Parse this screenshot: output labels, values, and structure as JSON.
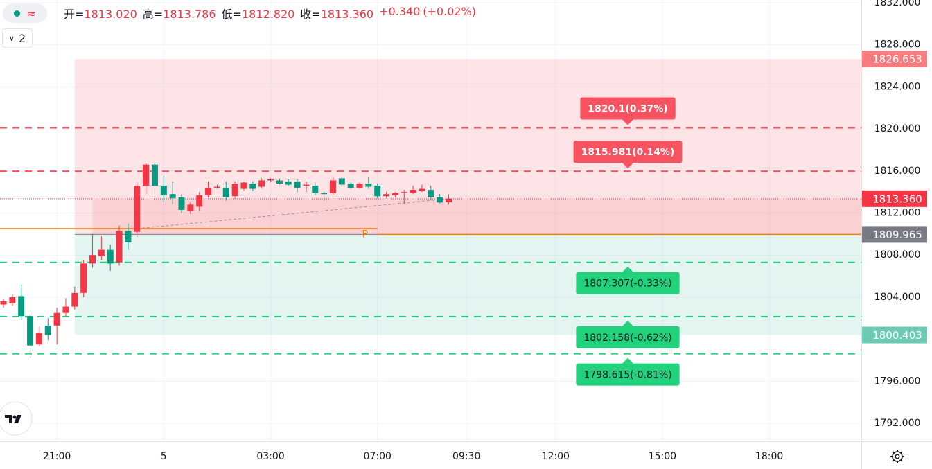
{
  "legend_bar": {
    "items": [
      {
        "label": "开=",
        "value": "1813.020"
      },
      {
        "label": "高=",
        "value": "1813.786"
      },
      {
        "label": "低=",
        "value": "1812.820"
      },
      {
        "label": "收=",
        "value": "1813.360"
      }
    ],
    "change": "+0.340",
    "change_percent": "(+0.02%)",
    "indicator_count": "2"
  },
  "chart_data": {
    "type": "candlestick",
    "up_color": "#f23645",
    "down_color": "#089981",
    "open": [
      1803.3,
      1803.4,
      1804.1,
      1802.2,
      1799.5,
      1801.3,
      1801.3,
      1802.5,
      1803.1,
      1804.4,
      1807.2,
      1807.9,
      1808.5,
      1807.3,
      1810.3,
      1810.2,
      1814.6,
      1816.6,
      1814.6,
      1813.8,
      1813.5,
      1812.2,
      1812.6,
      1813.7,
      1814.4,
      1814.4,
      1813.6,
      1814.3,
      1814.8,
      1814.5,
      1815.1,
      1815.1,
      1815.0,
      1815.0,
      1814.6,
      1814.6,
      1813.9,
      1813.9,
      1815.3,
      1814.8,
      1814.4,
      1814.8,
      1814.6,
      1813.6,
      1813.7,
      1813.9,
      1813.9,
      1814.1,
      1814.2,
      1813.5,
      1813.02
    ],
    "high": [
      1803.8,
      1804.3,
      1805.2,
      1802.4,
      1801.2,
      1802.0,
      1803.0,
      1803.9,
      1805.0,
      1807.5,
      1810.0,
      1809.8,
      1809.0,
      1810.8,
      1811.0,
      1814.9,
      1816.7,
      1816.7,
      1815.5,
      1815.0,
      1813.8,
      1813.0,
      1814.0,
      1815.0,
      1814.7,
      1815.0,
      1815.0,
      1815.0,
      1815.0,
      1815.3,
      1815.3,
      1815.3,
      1815.2,
      1815.2,
      1815.0,
      1814.9,
      1814.0,
      1815.4,
      1815.4,
      1814.9,
      1814.9,
      1815.4,
      1814.8,
      1814.0,
      1814.0,
      1814.2,
      1814.6,
      1814.7,
      1814.6,
      1813.8,
      1813.786
    ],
    "low": [
      1803.0,
      1803.2,
      1801.8,
      1798.2,
      1799.3,
      1799.9,
      1799.5,
      1802.2,
      1802.8,
      1804.0,
      1806.8,
      1807.5,
      1806.5,
      1807.0,
      1808.5,
      1809.7,
      1813.8,
      1813.5,
      1813.0,
      1812.8,
      1812.0,
      1811.9,
      1812.2,
      1813.5,
      1814.3,
      1813.2,
      1813.4,
      1814.1,
      1814.1,
      1814.3,
      1815.0,
      1814.7,
      1814.6,
      1814.0,
      1814.0,
      1813.7,
      1813.2,
      1813.7,
      1814.5,
      1814.3,
      1814.3,
      1814.3,
      1813.4,
      1813.4,
      1813.5,
      1812.9,
      1813.8,
      1814.0,
      1813.3,
      1812.9,
      1812.82
    ],
    "close": [
      1803.6,
      1804.0,
      1802.2,
      1799.4,
      1800.6,
      1800.4,
      1802.5,
      1803.1,
      1804.4,
      1807.2,
      1808.0,
      1808.5,
      1807.2,
      1810.3,
      1809.2,
      1814.6,
      1816.6,
      1814.6,
      1813.7,
      1813.4,
      1812.3,
      1812.8,
      1813.7,
      1814.4,
      1814.5,
      1813.5,
      1814.8,
      1814.9,
      1814.3,
      1815.1,
      1815.2,
      1814.8,
      1814.7,
      1814.4,
      1814.7,
      1813.9,
      1813.8,
      1815.1,
      1814.7,
      1814.4,
      1814.8,
      1814.5,
      1813.6,
      1813.8,
      1813.9,
      1814.0,
      1814.2,
      1814.3,
      1813.5,
      1813.0,
      1813.36
    ],
    "xlim": [
      -0.39,
      96.34
    ],
    "xticks": [
      {
        "value": 6,
        "label": "21:00"
      },
      {
        "value": 18,
        "label": "5"
      },
      {
        "value": 30,
        "label": "03:00"
      },
      {
        "value": 42,
        "label": "07:00"
      },
      {
        "value": 52,
        "label": "09:30"
      },
      {
        "value": 62,
        "label": "12:00"
      },
      {
        "value": 74,
        "label": "15:00"
      },
      {
        "value": 86,
        "label": "18:00"
      }
    ],
    "ylim": [
      1790.29,
      1832.26
    ],
    "yticks": [
      {
        "value": 1832,
        "label": "1832.000"
      },
      {
        "value": 1828,
        "label": "1828.000"
      },
      {
        "value": 1824,
        "label": "1824.000"
      },
      {
        "value": 1820,
        "label": "1820.000"
      },
      {
        "value": 1816,
        "label": "1816.000"
      },
      {
        "value": 1812,
        "label": "1812.000"
      },
      {
        "value": 1808,
        "label": "1808.000"
      },
      {
        "value": 1804,
        "label": "1804.000"
      },
      {
        "value": 1796,
        "label": "1796.000"
      },
      {
        "value": 1792,
        "label": "1792.000"
      }
    ],
    "grid": true,
    "levels": [
      {
        "value": 1820.1,
        "label": "1820.1(0.37%)",
        "color": "#f7525f"
      },
      {
        "value": 1815.981,
        "label": "1815.981(0.14%)",
        "color": "#f7525f"
      },
      {
        "value": 1807.307,
        "label": "1807.307(-0.33%)",
        "color": "#22d17b"
      },
      {
        "value": 1802.158,
        "label": "1802.158(-0.62%)",
        "color": "#22d17b"
      },
      {
        "value": 1798.615,
        "label": "1798.615(-0.81%)",
        "color": "#22d17b"
      }
    ],
    "position": {
      "target": {
        "value": 1826.653,
        "color": "#f77c80"
      },
      "entry": {
        "value": 1809.965,
        "color": "#787b86"
      },
      "stop": {
        "value": 1800.403,
        "color": "#6cc9b4"
      }
    },
    "last_price": {
      "value": 1813.36,
      "label": "1813.360",
      "color": "#f23645"
    },
    "pivot": {
      "value": 1810.52,
      "label": "P",
      "color": "#f57c00"
    }
  }
}
